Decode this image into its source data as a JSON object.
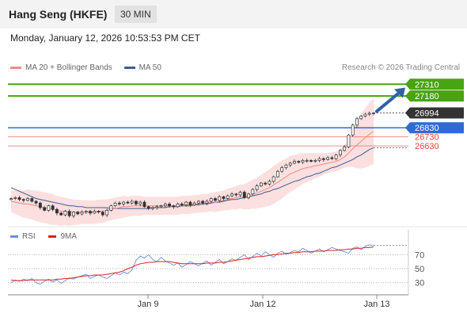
{
  "header": {
    "title": "Hang Seng (HKFE)",
    "timeframe": "30 MIN"
  },
  "datetime": "Monday, January 12, 2026 10:53:53 PM CET",
  "legend": {
    "ma20_label": "MA 20 + Bollinger Bands",
    "ma50_label": "MA 50",
    "credit": "Research © 2026 Trading Central"
  },
  "rsi_legend": {
    "rsi_label": "RSI",
    "ma_label": "9MA"
  },
  "colors": {
    "resistance": "#4aa312",
    "pivot": "#2f6bd6",
    "support": "#f08c8c",
    "last_price": "#333333",
    "ma20": "#f28b82",
    "ma50": "#3e5c98",
    "band_fill": "#fbd9d9",
    "arrow": "#2d62a8",
    "rsi": "#6f8fd6",
    "rsi_ma": "#dd2222",
    "candle": "#333333"
  },
  "chart_data": [
    {
      "type": "candlestick",
      "symbol": "Hang Seng (HKFE)",
      "timeframe": "30 MIN",
      "x_ticks": [
        "Jan 9",
        "Jan 12",
        "Jan 13"
      ],
      "ylim": [
        25740,
        27400
      ],
      "levels": [
        {
          "label": "27310",
          "value": 27310,
          "kind": "resistance"
        },
        {
          "label": "27180",
          "value": 27180,
          "kind": "resistance"
        },
        {
          "label": "26994",
          "value": 26994,
          "kind": "last"
        },
        {
          "label": "26830",
          "value": 26830,
          "kind": "pivot"
        },
        {
          "label": "26730",
          "value": 26730,
          "kind": "support"
        },
        {
          "label": "26630",
          "value": 26630,
          "kind": "support"
        }
      ],
      "arrow": {
        "from": 26994,
        "to": 27290,
        "direction": "up"
      },
      "close": [
        26050,
        26060,
        26040,
        26030,
        26050,
        26020,
        26000,
        25950,
        25920,
        25970,
        25930,
        25890,
        25870,
        25910,
        25860,
        25900,
        25880,
        25900,
        25910,
        25890,
        25910,
        25900,
        25870,
        25920,
        25970,
        26000,
        25990,
        26010,
        26000,
        26020,
        25990,
        26010,
        25960,
        25940,
        25950,
        25960,
        25970,
        25990,
        25970,
        25960,
        25990,
        25980,
        26010,
        25980,
        26000,
        26020,
        26000,
        26020,
        26050,
        26030,
        26070,
        26050,
        26080,
        26100,
        26090,
        26120,
        26060,
        26100,
        26150,
        26190,
        26220,
        26210,
        26240,
        26290,
        26350,
        26390,
        26420,
        26440,
        26460,
        26450,
        26470,
        26470,
        26460,
        26470,
        26490,
        26480,
        26500,
        26490,
        26530,
        26580,
        26620,
        26750,
        26860,
        26930,
        26960,
        26980,
        26990,
        26994
      ],
      "ma20": [
        26020,
        26010,
        26000,
        25990,
        25990,
        25980,
        25970,
        25960,
        25950,
        25940,
        25930,
        25920,
        25910,
        25910,
        25900,
        25900,
        25900,
        25900,
        25900,
        25900,
        25900,
        25910,
        25910,
        25920,
        25930,
        25940,
        25950,
        25960,
        25960,
        25970,
        25970,
        25970,
        25970,
        25970,
        25970,
        25970,
        25970,
        25970,
        25970,
        25970,
        25970,
        25980,
        25980,
        25980,
        25990,
        25990,
        26000,
        26000,
        26010,
        26010,
        26020,
        26030,
        26040,
        26050,
        26060,
        26070,
        26070,
        26080,
        26100,
        26110,
        26130,
        26150,
        26170,
        26200,
        26230,
        26260,
        26290,
        26320,
        26340,
        26360,
        26380,
        26390,
        26400,
        26410,
        26420,
        26430,
        26440,
        26450,
        26460,
        26480,
        26510,
        26550,
        26600,
        26640,
        26680,
        26720,
        26760,
        26790
      ],
      "ma50": [
        26170,
        26150,
        26130,
        26110,
        26090,
        26070,
        26050,
        26040,
        26030,
        26020,
        26010,
        26000,
        25990,
        25980,
        25970,
        25970,
        25960,
        25960,
        25950,
        25950,
        25950,
        25950,
        25950,
        25950,
        25940,
        25940,
        25940,
        25940,
        25940,
        25940,
        25940,
        25940,
        25940,
        25940,
        25950,
        25950,
        25950,
        25950,
        25960,
        25960,
        25960,
        25970,
        25970,
        25970,
        25980,
        25980,
        25990,
        25990,
        26000,
        26010,
        26010,
        26020,
        26030,
        26040,
        26040,
        26050,
        26060,
        26070,
        26080,
        26090,
        26100,
        26120,
        26130,
        26150,
        26160,
        26180,
        26200,
        26220,
        26240,
        26250,
        26270,
        26290,
        26300,
        26320,
        26330,
        26350,
        26370,
        26390,
        26400,
        26420,
        26440,
        26460,
        26480,
        26510,
        26530,
        26560,
        26590,
        26610
      ],
      "band_width": [
        120,
        130,
        140,
        150,
        160,
        160,
        170,
        170,
        170,
        170,
        170,
        160,
        160,
        150,
        150,
        140,
        140,
        130,
        130,
        130,
        130,
        130,
        130,
        120,
        120,
        120,
        120,
        120,
        110,
        110,
        110,
        110,
        100,
        100,
        100,
        100,
        100,
        100,
        100,
        100,
        100,
        100,
        100,
        100,
        100,
        100,
        100,
        100,
        100,
        110,
        110,
        110,
        120,
        120,
        130,
        130,
        140,
        150,
        160,
        170,
        180,
        190,
        200,
        210,
        210,
        210,
        200,
        200,
        190,
        180,
        170,
        160,
        150,
        140,
        130,
        120,
        110,
        110,
        110,
        110,
        120,
        150,
        200,
        260,
        300,
        330,
        350,
        360
      ]
    },
    {
      "type": "line",
      "name": "RSI",
      "yticks": [
        70,
        50,
        30
      ],
      "ylim": [
        15,
        85
      ],
      "rsi": [
        30,
        34,
        32,
        35,
        33,
        36,
        30,
        28,
        32,
        35,
        31,
        34,
        29,
        33,
        37,
        35,
        38,
        40,
        42,
        36,
        39,
        41,
        38,
        36,
        40,
        44,
        41,
        45,
        43,
        48,
        62,
        68,
        65,
        70,
        63,
        60,
        66,
        61,
        58,
        55,
        58,
        52,
        56,
        60,
        57,
        54,
        58,
        61,
        55,
        59,
        63,
        57,
        60,
        64,
        62,
        66,
        70,
        63,
        67,
        72,
        68,
        74,
        70,
        66,
        72,
        75,
        70,
        73,
        76,
        74,
        79,
        76,
        72,
        75,
        78,
        74,
        77,
        80,
        78,
        76,
        74,
        72,
        79,
        81,
        77,
        82,
        84,
        83
      ],
      "rsi_ma": [
        34,
        33,
        33,
        33,
        34,
        34,
        34,
        34,
        34,
        34,
        34,
        35,
        35,
        36,
        36,
        37,
        38,
        39,
        40,
        40,
        41,
        41,
        41,
        42,
        43,
        44,
        45,
        47,
        50,
        52,
        55,
        57,
        58,
        59,
        59,
        60,
        60,
        60,
        60,
        59,
        58,
        57,
        57,
        57,
        57,
        57,
        57,
        58,
        58,
        58,
        59,
        59,
        60,
        61,
        62,
        63,
        64,
        65,
        66,
        67,
        67,
        68,
        69,
        70,
        70,
        71,
        72,
        72,
        73,
        73,
        74,
        74,
        74,
        75,
        75,
        75,
        76,
        76,
        76,
        77,
        77,
        78,
        78,
        79,
        79,
        80,
        80,
        81
      ]
    }
  ]
}
